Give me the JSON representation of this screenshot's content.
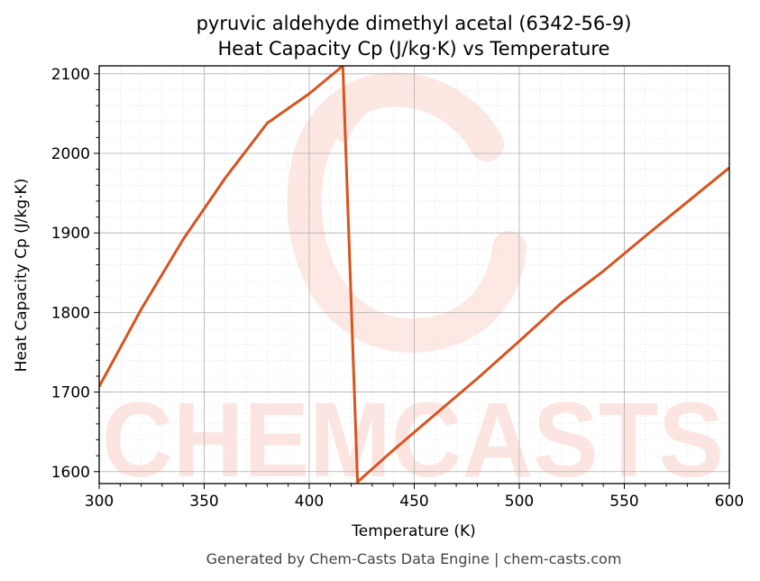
{
  "chart_data": {
    "type": "line",
    "title_line1": "pyruvic aldehyde dimethyl acetal (6342-56-9)",
    "title_line2": "Heat Capacity Cp (J/kg·K) vs Temperature",
    "xlabel": "Temperature (K)",
    "ylabel": "Heat Capacity Cp (J/kg·K)",
    "xlim": [
      300,
      600
    ],
    "ylim": [
      1585,
      2110
    ],
    "xticks": [
      300,
      350,
      400,
      450,
      500,
      550,
      600
    ],
    "yticks": [
      1600,
      1700,
      1800,
      1900,
      2000,
      2100
    ],
    "grid": true,
    "line_color": "#d9531e",
    "series": [
      {
        "x": [
          300,
          320,
          340,
          360,
          380,
          400,
          416,
          423,
          440,
          460,
          480,
          500,
          520,
          540,
          560,
          580,
          600
        ],
        "y": [
          1707,
          1804,
          1892,
          1969,
          2038,
          2075,
          2110,
          1587,
          1627,
          1672,
          1717,
          1764,
          1812,
          1852,
          1896,
          1939,
          1982
        ]
      }
    ]
  },
  "watermark": {
    "text": "CHEMCASTS",
    "color": "#fbd5cc"
  },
  "footer": "Generated by Chem-Casts Data Engine | chem-casts.com"
}
